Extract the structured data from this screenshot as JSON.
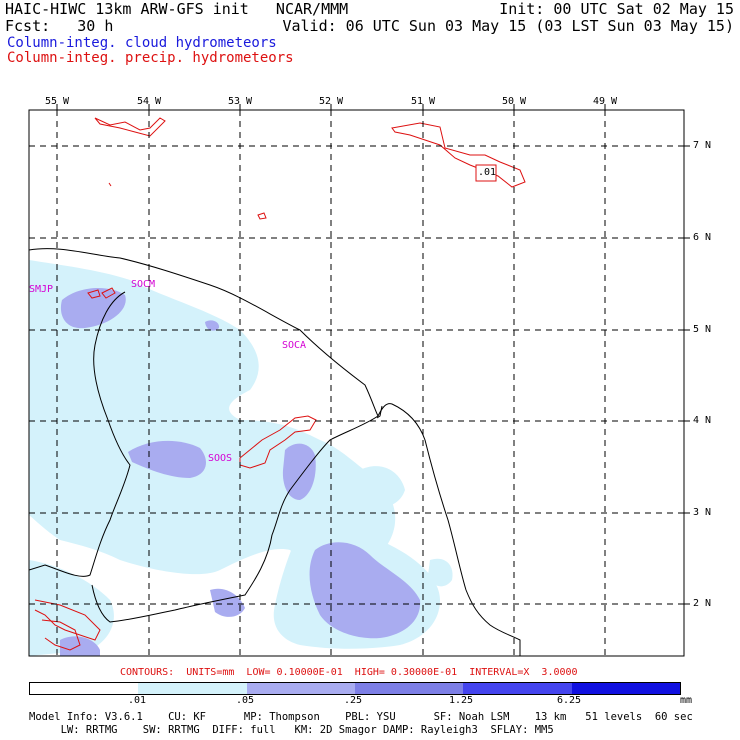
{
  "header": {
    "left1": "HAIC-HIWC 13km ARW-GFS init   NCAR/MMM",
    "left2": "Fcst:   30 h",
    "right1": "Init: 00 UTC Sat 02 May 15",
    "right2": "Valid: 06 UTC Sun 03 May 15 (03 LST Sun 03 May 15)",
    "legend_cloud": "Column-integ. cloud hydrometeors",
    "legend_precip": "Column-integ. precip. hydrometeors"
  },
  "map": {
    "lon_labels": [
      "55 W",
      "54 W",
      "53 W",
      "52 W",
      "51 W",
      "50 W",
      "49 W"
    ],
    "lat_labels": [
      "7 N",
      "6 N",
      "5 N",
      "4 N",
      "3 N",
      "2 N"
    ],
    "stations": [
      "SMJP",
      "SOCM",
      "SOCA",
      "SOOS"
    ],
    "contour_label": ".01",
    "colors": {
      "cloud_light": "#d4f2fb",
      "cloud_mid": "#a9acf0",
      "cloud_dark": "#8e90e9",
      "precip": "#dd1111",
      "station": "#d400d4"
    }
  },
  "footer": {
    "contours": "CONTOURS:  UNITS=mm  LOW= 0.10000E-01  HIGH= 0.30000E-01  INTERVAL=X  3.0000",
    "scale_labels": [
      ".01",
      ".05",
      ".25",
      "1.25",
      "6.25",
      "mm"
    ],
    "scale_colors": [
      "#ffffff",
      "#d4f2fb",
      "#a9acf0",
      "#7d7fe6",
      "#4444ee",
      "#1010e0"
    ],
    "model_info1": "Model Info: V3.6.1    CU: KF      MP: Thompson    PBL: YSU      SF: Noah LSM    13 km   51 levels  60 sec",
    "model_info2": "     LW: RRTMG    SW: RRTMG  DIFF: full   KM: 2D Smagor DAMP: Rayleigh3  SFLAY: MM5"
  }
}
